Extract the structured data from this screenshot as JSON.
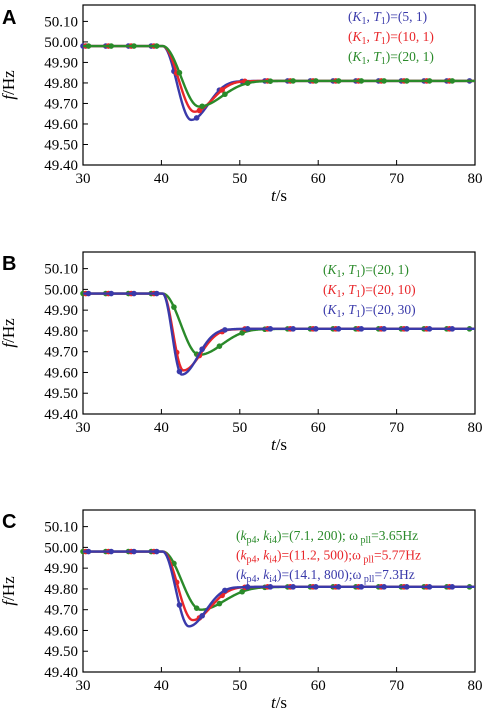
{
  "chart_data": [
    {
      "type": "line",
      "panel": "A",
      "xlabel": "t/s",
      "ylabel": "f/Hz",
      "xlim": [
        30,
        80
      ],
      "ylim": [
        49.4,
        50.18
      ],
      "xticks": [
        "30",
        "40",
        "50",
        "60",
        "70",
        "80"
      ],
      "yticks": [
        "49.40",
        "49.50",
        "49.60",
        "49.70",
        "49.80",
        "49.90",
        "50.00",
        "50.10"
      ],
      "legend_position": "top-right",
      "series": [
        {
          "name": "(K1,T1)=(5,1)",
          "legend": {
            "pre": "(",
            "a": "K",
            "a_sub": "1",
            "mid": ",   ",
            "b": "T",
            "b_sub": "1",
            "post": ")=(5,   1)"
          },
          "color": "#3a3aaa",
          "y0": 49.98,
          "t0": 40.15,
          "y_end": 49.81,
          "depth": 0.36,
          "tmin": 43.8,
          "wr": 3.0,
          "overshoot": 0.01
        },
        {
          "name": "(K1,T1)=(10,1)",
          "legend": {
            "pre": "(",
            "a": "K",
            "a_sub": "1",
            "mid": ",   ",
            "b": "T",
            "b_sub": "1",
            "post": ")=(10,   1)"
          },
          "color": "#e8262a",
          "y0": 49.98,
          "t0": 40.15,
          "y_end": 49.81,
          "depth": 0.32,
          "tmin": 44.2,
          "wr": 3.2,
          "overshoot": 0.008
        },
        {
          "name": "(K1,T1)=(20,1)",
          "legend": {
            "pre": "(",
            "a": "K",
            "a_sub": "1",
            "mid": ",   ",
            "b": "T",
            "b_sub": "1",
            "post": ")=(20,   1)"
          },
          "color": "#2a8a2a",
          "y0": 49.98,
          "t0": 40.15,
          "y_end": 49.81,
          "depth": 0.295,
          "tmin": 44.8,
          "wr": 4.0,
          "overshoot": 0.005
        }
      ]
    },
    {
      "type": "line",
      "panel": "B",
      "xlabel": "t/s",
      "ylabel": "f/Hz",
      "xlim": [
        30,
        80
      ],
      "ylim": [
        49.4,
        50.18
      ],
      "xticks": [
        "30",
        "40",
        "50",
        "60",
        "70",
        "80"
      ],
      "yticks": [
        "49.40",
        "49.50",
        "49.60",
        "49.70",
        "49.80",
        "49.90",
        "50.00",
        "50.10"
      ],
      "legend_position": "top-right",
      "series": [
        {
          "name": "(K1,T1)=(20,1)",
          "legend": {
            "pre": "(",
            "a": "K",
            "a_sub": "1",
            "mid": ",   ",
            "b": "T",
            "b_sub": "1",
            "post": ")=(20,   1)"
          },
          "color": "#2a8a2a",
          "y0": 49.98,
          "t0": 40.15,
          "y_end": 49.81,
          "depth": 0.295,
          "tmin": 44.8,
          "wr": 4.0,
          "overshoot": 0.005
        },
        {
          "name": "(K1,T1)=(20,10)",
          "legend": {
            "pre": "(",
            "a": "K",
            "a_sub": "1",
            "mid": ",   ",
            "b": "T",
            "b_sub": "1",
            "post": ")=(20,   10)"
          },
          "color": "#e8262a",
          "y0": 49.98,
          "t0": 40.15,
          "y_end": 49.81,
          "depth": 0.37,
          "tmin": 42.8,
          "wr": 3.0,
          "overshoot": 0.007
        },
        {
          "name": "(K1,T1)=(20,30)",
          "legend": {
            "pre": "(",
            "a": "K",
            "a_sub": "1",
            "mid": ",   ",
            "b": "T",
            "b_sub": "1",
            "post": ")=(20,   30)"
          },
          "color": "#3a3aaa",
          "y0": 49.98,
          "t0": 40.15,
          "y_end": 49.81,
          "depth": 0.39,
          "tmin": 42.6,
          "wr": 2.8,
          "overshoot": 0.006
        }
      ]
    },
    {
      "type": "line",
      "panel": "C",
      "xlabel": "t/s",
      "ylabel": "f/Hz",
      "xlim": [
        30,
        80
      ],
      "ylim": [
        49.4,
        50.18
      ],
      "xticks": [
        "30",
        "40",
        "50",
        "60",
        "70",
        "80"
      ],
      "yticks": [
        "49.40",
        "49.50",
        "49.60",
        "49.70",
        "49.80",
        "49.90",
        "50.00",
        "50.10"
      ],
      "legend_position": "top-right",
      "series": [
        {
          "name": "(kp4,ki4)=(7.1,200);ωpll=3.65Hz",
          "legend": {
            "pre": "(",
            "a": "k",
            "a_sub": "p4",
            "mid": ",   ",
            "b": "k",
            "b_sub": "i4",
            "post": ")=(7.1,   200); ω",
            "c_sub": " pll",
            "c_post": "=3.65Hz"
          },
          "color": "#2a8a2a",
          "y0": 49.98,
          "t0": 40.15,
          "y_end": 49.81,
          "depth": 0.28,
          "tmin": 45.0,
          "wr": 4.2,
          "overshoot": 0.004
        },
        {
          "name": "(kp4,ki4)=(11.2,500);ωpll=5.77Hz",
          "legend": {
            "pre": "(",
            "a": "k",
            "a_sub": "p4",
            "mid": ",   ",
            "b": "k",
            "b_sub": "i4",
            "post": ")=(11.2,   500);ω",
            "c_sub": " pll",
            "c_post": "=5.77Hz"
          },
          "color": "#e8262a",
          "y0": 49.98,
          "t0": 40.15,
          "y_end": 49.81,
          "depth": 0.33,
          "tmin": 44.0,
          "wr": 3.2,
          "overshoot": 0.008
        },
        {
          "name": "(kp4,ki4)=(14.1,800);ωpll=7.3Hz",
          "legend": {
            "pre": "(",
            "a": "k",
            "a_sub": "p4",
            "mid": ",   ",
            "b": "k",
            "b_sub": "i4",
            "post": ")=(14.1,   800);ω",
            "c_sub": " pll",
            "c_post": "=7.3Hz"
          },
          "color": "#3a3aaa",
          "y0": 49.98,
          "t0": 40.15,
          "y_end": 49.81,
          "depth": 0.36,
          "tmin": 43.5,
          "wr": 3.0,
          "overshoot": 0.009
        }
      ]
    }
  ]
}
